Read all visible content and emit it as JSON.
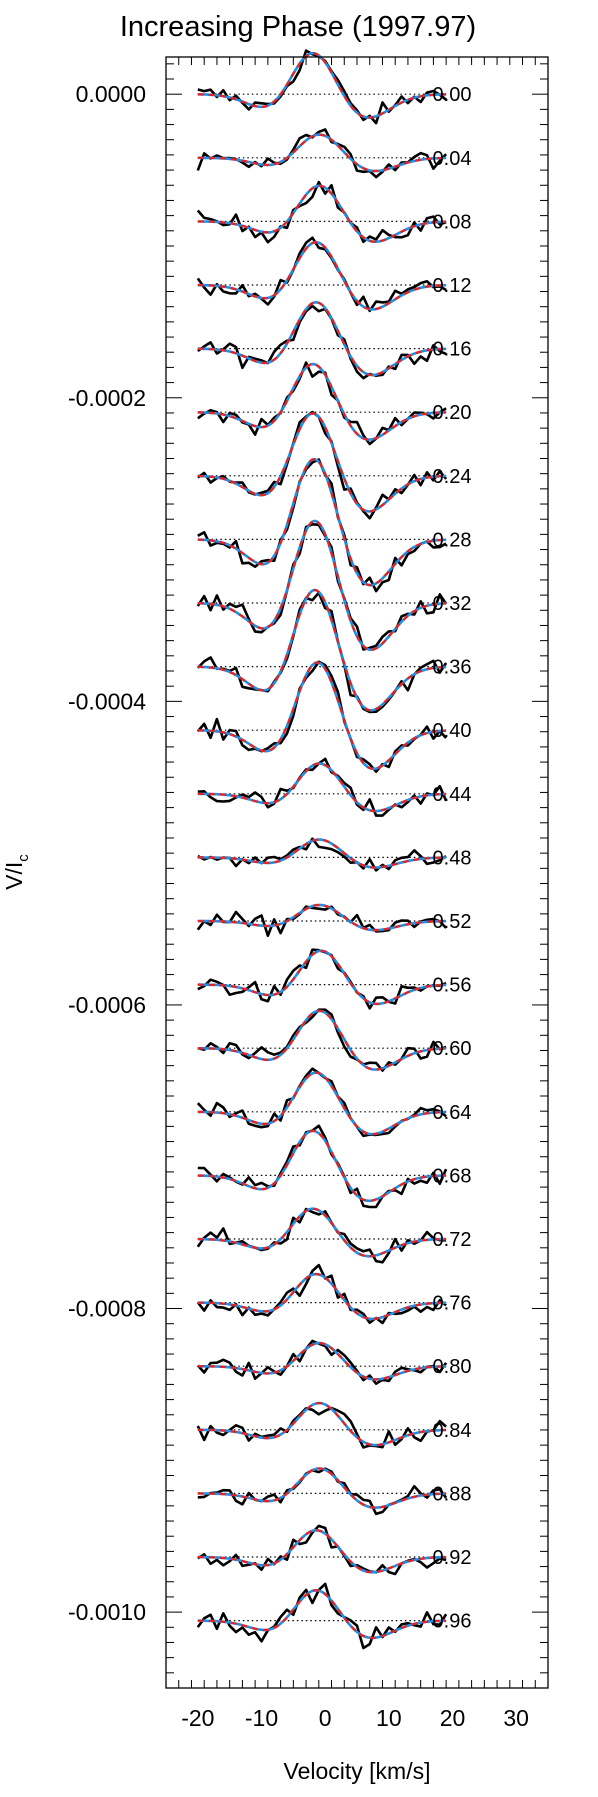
{
  "chart_data": {
    "type": "line",
    "title": "Increasing Phase (1997.97)",
    "xlabel": "Velocity [km/s]",
    "ylabel": "V/I",
    "ylabel_subscript": "c",
    "xlim": [
      -25,
      35
    ],
    "ylim": [
      -0.00105,
      2.45e-05
    ],
    "x_tick_values": [
      -20,
      -10,
      0,
      10,
      20,
      30
    ],
    "x_tick_labels": [
      "-20",
      "-10",
      "0",
      "10",
      "20",
      "30"
    ],
    "y_tick_values": [
      0.0,
      -0.0002,
      -0.0004,
      -0.0006,
      -0.0008,
      -0.001
    ],
    "y_tick_labels": [
      "0.0000",
      "-0.0002",
      "-0.0004",
      "-0.0006",
      "-0.0008",
      "-0.0010"
    ],
    "profile_velocity_range": [
      -20,
      19
    ],
    "profile_offset_step": -4.19e-05,
    "phases": [
      "0.00",
      "0.04",
      "0.08",
      "0.12",
      "0.16",
      "0.20",
      "0.24",
      "0.28",
      "0.32",
      "0.36",
      "0.40",
      "0.44",
      "0.48",
      "0.52",
      "0.56",
      "0.60",
      "0.64",
      "0.68",
      "0.72",
      "0.76",
      "0.80",
      "0.84",
      "0.88",
      "0.92",
      "0.96"
    ],
    "model_amplitude_x1e6": [
      23,
      13,
      20,
      24,
      26,
      27,
      35,
      45,
      46,
      43,
      38,
      17,
      10,
      9,
      19,
      21,
      22,
      25,
      17,
      16,
      13,
      15,
      14,
      15,
      17
    ],
    "model_center_shift": [
      -0.5,
      0.5,
      0.5,
      0.0,
      0.0,
      -0.5,
      -0.5,
      -0.3,
      -0.2,
      -0.2,
      0.2,
      0.5,
      0.5,
      0.5,
      0.8,
      0.5,
      0.0,
      -0.5,
      -0.5,
      0.0,
      0.5,
      0.5,
      0.5,
      0.0,
      0.0
    ],
    "series": [
      {
        "name": "Observed",
        "color": "#000000",
        "style": "solid"
      },
      {
        "name": "Model (blue)",
        "color": "#1f8fe8",
        "style": "solid"
      },
      {
        "name": "Model (red)",
        "color": "#e8221f",
        "style": "dashed"
      }
    ],
    "grid": false,
    "legend": "none"
  }
}
